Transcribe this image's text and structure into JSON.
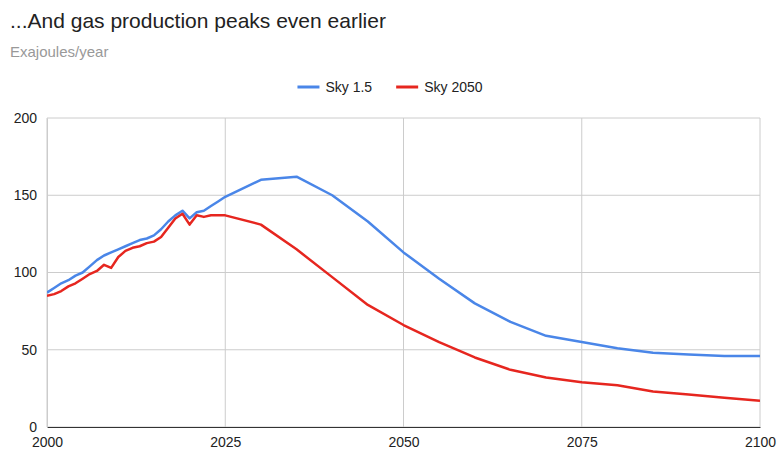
{
  "chart_data": {
    "type": "line",
    "title": "...And gas production peaks even earlier",
    "subtitle": "Exajoules/year",
    "x": [
      2000,
      2001,
      2002,
      2003,
      2004,
      2005,
      2006,
      2007,
      2008,
      2009,
      2010,
      2011,
      2012,
      2013,
      2014,
      2015,
      2016,
      2017,
      2018,
      2019,
      2020,
      2021,
      2022,
      2023,
      2024,
      2025,
      2030,
      2035,
      2040,
      2045,
      2050,
      2055,
      2060,
      2065,
      2070,
      2075,
      2080,
      2085,
      2090,
      2095,
      2100
    ],
    "series": [
      {
        "name": "Sky 1.5",
        "color": "#4a86e8",
        "values": [
          87,
          90,
          93,
          95,
          98,
          100,
          104,
          108,
          111,
          113,
          115,
          117,
          119,
          121,
          122,
          124,
          128,
          133,
          137,
          140,
          135,
          139,
          140,
          143,
          146,
          149,
          160,
          162,
          150,
          133,
          113,
          96,
          80,
          68,
          59,
          55,
          51,
          48,
          47,
          46,
          46
        ]
      },
      {
        "name": "Sky 2050",
        "color": "#e6261f",
        "values": [
          85,
          86,
          88,
          91,
          93,
          96,
          99,
          101,
          105,
          103,
          110,
          114,
          116,
          117,
          119,
          120,
          123,
          129,
          135,
          138,
          131,
          137,
          136,
          137,
          137,
          137,
          131,
          115,
          97,
          79,
          66,
          55,
          45,
          37,
          32,
          29,
          27,
          23,
          21,
          19,
          17
        ]
      }
    ],
    "xlim": [
      2000,
      2100
    ],
    "xticks": [
      2000,
      2025,
      2050,
      2075,
      2100
    ],
    "ylim": [
      0,
      200
    ],
    "yticks": [
      0,
      50,
      100,
      150,
      200
    ],
    "grid": true,
    "legend": "top"
  }
}
